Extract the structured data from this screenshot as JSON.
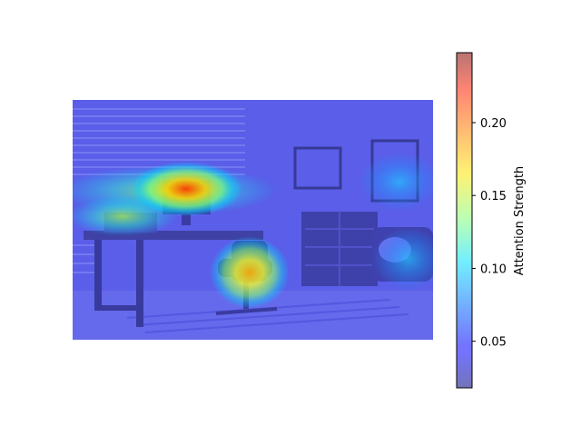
{
  "chart_data": {
    "type": "heatmap",
    "title": "",
    "description": "Attention heatmap overlaid on a photo of a home office (desk with computer monitor, office chair, dresser, framed pictures, armchair).",
    "colorbar": {
      "label": "Attention Strength",
      "colormap": "jet",
      "range": [
        0.018,
        0.248
      ],
      "ticks": [
        0.05,
        0.1,
        0.15,
        0.2
      ],
      "tick_labels": [
        "0.05",
        "0.10",
        "0.15",
        "0.20"
      ]
    },
    "hotspots": [
      {
        "region": "monitor",
        "value": 0.22
      },
      {
        "region": "chair",
        "value": 0.17
      },
      {
        "region": "desk-left-items",
        "value": 0.12
      },
      {
        "region": "right-wall",
        "value": 0.09
      },
      {
        "region": "armchair",
        "value": 0.08
      }
    ],
    "background_value": 0.03
  }
}
